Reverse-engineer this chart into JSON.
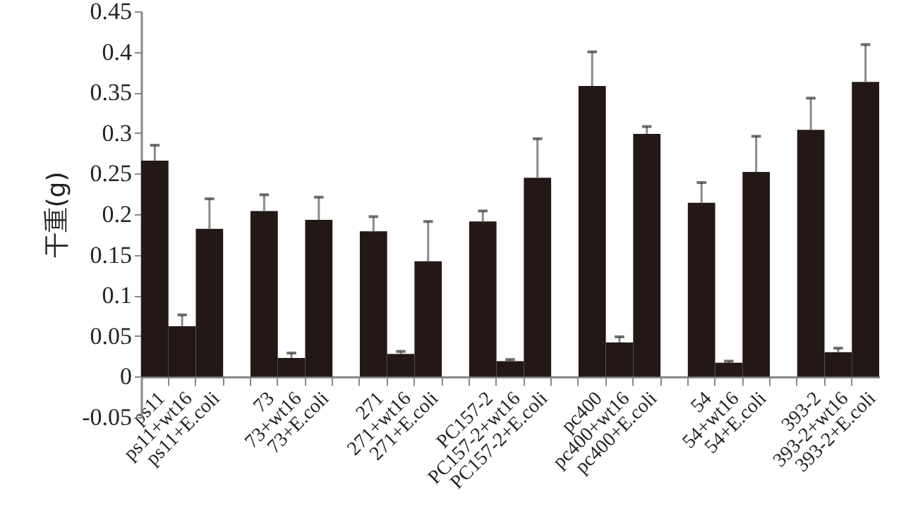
{
  "chart_data": {
    "type": "bar",
    "ylabel": "干重(g)",
    "categories": [
      "ps11",
      "ps11+wt16",
      "ps11+E.coli",
      null,
      "73",
      "73+wt16",
      "73+E.coli",
      null,
      "271",
      "271+wt16",
      "271+E.coli",
      null,
      "PC157-2",
      "PC157-2+wt16",
      "PC157-2+E.coli",
      null,
      "pc400",
      "pc400+wt16",
      "pc400+E.coli",
      null,
      "54",
      "54+wt16",
      "54+E.coli",
      null,
      "393-2",
      "393-2+wt16",
      "393-2+E.coli"
    ],
    "values": [
      0.266,
      0.062,
      0.182,
      null,
      0.204,
      0.023,
      0.193,
      null,
      0.179,
      0.028,
      0.142,
      null,
      0.191,
      0.019,
      0.245,
      null,
      0.358,
      0.042,
      0.299,
      null,
      0.214,
      0.017,
      0.252,
      null,
      0.304,
      0.03,
      0.363
    ],
    "errors": [
      [
        0.266,
        0.285
      ],
      [
        0.062,
        0.076
      ],
      [
        0.182,
        0.219
      ],
      null,
      [
        0.204,
        0.224
      ],
      [
        0.023,
        0.029
      ],
      [
        0.193,
        0.221
      ],
      null,
      [
        0.179,
        0.197
      ],
      [
        0.028,
        0.031
      ],
      [
        0.142,
        0.191
      ],
      null,
      [
        0.191,
        0.204
      ],
      [
        0.019,
        0.021
      ],
      [
        0.245,
        0.293
      ],
      null,
      [
        0.358,
        0.4
      ],
      [
        0.042,
        0.049
      ],
      [
        0.299,
        0.308
      ],
      null,
      [
        0.214,
        0.239
      ],
      [
        0.017,
        0.019
      ],
      [
        0.252,
        0.296
      ],
      null,
      [
        0.304,
        0.343
      ],
      [
        0.03,
        0.035
      ],
      [
        0.363,
        0.409
      ]
    ],
    "color": "#231815",
    "ylim": [
      -0.05,
      0.45
    ],
    "yticks": [
      -0.05,
      0,
      0.05,
      0.1,
      0.15,
      0.2,
      0.25,
      0.3,
      0.35,
      0.4,
      0.45
    ]
  }
}
